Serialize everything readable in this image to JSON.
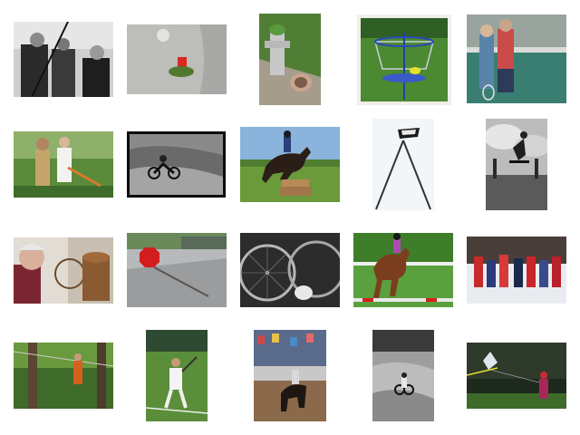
{
  "grid": {
    "background": "#ffffff",
    "thumbnails": [
      {
        "name": "thumb-men-with-swords-bw"
      },
      {
        "name": "thumb-hydrant-on-sidewalk"
      },
      {
        "name": "thumb-hydrant-and-grass"
      },
      {
        "name": "thumb-disc-golf-basket"
      },
      {
        "name": "thumb-kids-tennis-court"
      },
      {
        "name": "thumb-boy-and-man-outdoors"
      },
      {
        "name": "thumb-motocross-bw"
      },
      {
        "name": "thumb-horse-jumping-logs"
      },
      {
        "name": "thumb-pole-sculpture"
      },
      {
        "name": "thumb-skateboarder-bw"
      },
      {
        "name": "thumb-elderly-woman-wheel"
      },
      {
        "name": "thumb-stop-sign-street"
      },
      {
        "name": "thumb-bicycle-wheels"
      },
      {
        "name": "thumb-show-jumping-rider"
      },
      {
        "name": "thumb-crowd-in-snow"
      },
      {
        "name": "thumb-zipline-forest"
      },
      {
        "name": "thumb-tennis-player-grass"
      },
      {
        "name": "thumb-horse-arena-crowd"
      },
      {
        "name": "thumb-motocross-dirt-bw"
      },
      {
        "name": "thumb-kite-in-park"
      }
    ]
  }
}
